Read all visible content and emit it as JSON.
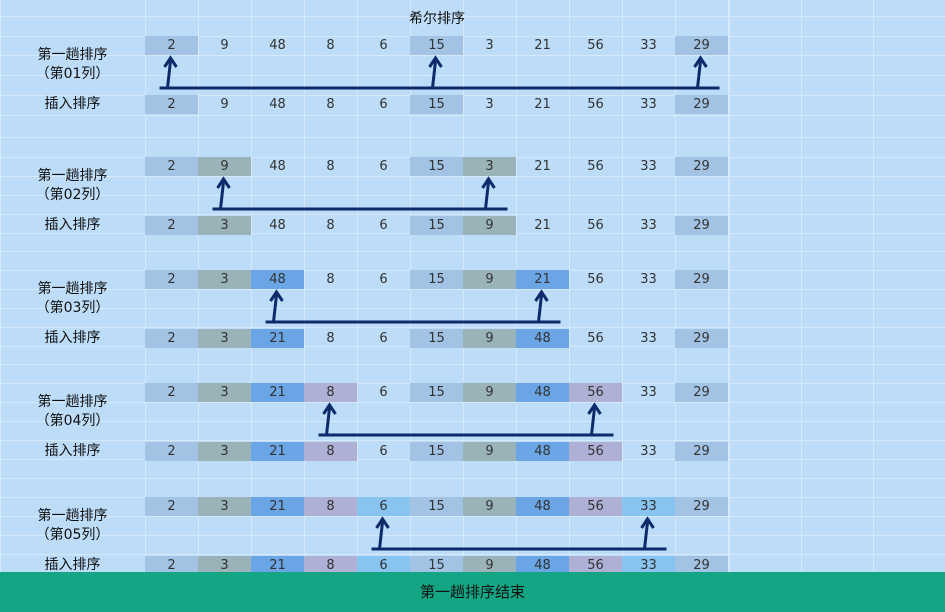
{
  "title": "希尔排序",
  "footer_text": "第一趟排序结束",
  "colors": {
    "background": "#bcdcf8",
    "footer": "#14a585",
    "arrow": "#0d2a6b",
    "group1": "#a2c3e3",
    "group2": "#9ab3b8",
    "group3": "#6aa5e6",
    "group4": "#afb0d5",
    "group5": "#88c4f0"
  },
  "blocks": [
    {
      "label_line1": "第一趟排序",
      "label_line2": "（第01列）",
      "before": [
        "2",
        "9",
        "48",
        "8",
        "6",
        "15",
        "3",
        "21",
        "56",
        "33",
        "29"
      ],
      "before_colors": [
        "#a2c3e3",
        "",
        "",
        "",
        "",
        "#a2c3e3",
        "",
        "",
        "",
        "",
        "#a2c3e3"
      ],
      "insert_label": "插入排序",
      "after": [
        "2",
        "9",
        "48",
        "8",
        "6",
        "15",
        "3",
        "21",
        "56",
        "33",
        "29"
      ],
      "after_colors": [
        "#a2c3e3",
        "",
        "",
        "",
        "",
        "#a2c3e3",
        "",
        "",
        "",
        "",
        "#a2c3e3"
      ],
      "arrow_columns": [
        0,
        5,
        10
      ]
    },
    {
      "label_line1": "第一趟排序",
      "label_line2": "（第02列）",
      "before": [
        "2",
        "9",
        "48",
        "8",
        "6",
        "15",
        "3",
        "21",
        "56",
        "33",
        "29"
      ],
      "before_colors": [
        "#a2c3e3",
        "#9ab3b8",
        "",
        "",
        "",
        "#a2c3e3",
        "#9ab3b8",
        "",
        "",
        "",
        "#a2c3e3"
      ],
      "insert_label": "插入排序",
      "after": [
        "2",
        "3",
        "48",
        "8",
        "6",
        "15",
        "9",
        "21",
        "56",
        "33",
        "29"
      ],
      "after_colors": [
        "#a2c3e3",
        "#9ab3b8",
        "",
        "",
        "",
        "#a2c3e3",
        "#9ab3b8",
        "",
        "",
        "",
        "#a2c3e3"
      ],
      "arrow_columns": [
        1,
        6
      ]
    },
    {
      "label_line1": "第一趟排序",
      "label_line2": "（第03列）",
      "before": [
        "2",
        "3",
        "48",
        "8",
        "6",
        "15",
        "9",
        "21",
        "56",
        "33",
        "29"
      ],
      "before_colors": [
        "#a2c3e3",
        "#9ab3b8",
        "#6aa5e6",
        "",
        "",
        "#a2c3e3",
        "#9ab3b8",
        "#6aa5e6",
        "",
        "",
        "#a2c3e3"
      ],
      "insert_label": "插入排序",
      "after": [
        "2",
        "3",
        "21",
        "8",
        "6",
        "15",
        "9",
        "48",
        "56",
        "33",
        "29"
      ],
      "after_colors": [
        "#a2c3e3",
        "#9ab3b8",
        "#6aa5e6",
        "",
        "",
        "#a2c3e3",
        "#9ab3b8",
        "#6aa5e6",
        "",
        "",
        "#a2c3e3"
      ],
      "arrow_columns": [
        2,
        7
      ]
    },
    {
      "label_line1": "第一趟排序",
      "label_line2": "（第04列）",
      "before": [
        "2",
        "3",
        "21",
        "8",
        "6",
        "15",
        "9",
        "48",
        "56",
        "33",
        "29"
      ],
      "before_colors": [
        "#a2c3e3",
        "#9ab3b8",
        "#6aa5e6",
        "#afb0d5",
        "",
        "#a2c3e3",
        "#9ab3b8",
        "#6aa5e6",
        "#afb0d5",
        "",
        "#a2c3e3"
      ],
      "insert_label": "插入排序",
      "after": [
        "2",
        "3",
        "21",
        "8",
        "6",
        "15",
        "9",
        "48",
        "56",
        "33",
        "29"
      ],
      "after_colors": [
        "#a2c3e3",
        "#9ab3b8",
        "#6aa5e6",
        "#afb0d5",
        "",
        "#a2c3e3",
        "#9ab3b8",
        "#6aa5e6",
        "#afb0d5",
        "",
        "#a2c3e3"
      ],
      "arrow_columns": [
        3,
        8
      ]
    },
    {
      "label_line1": "第一趟排序",
      "label_line2": "（第05列）",
      "before": [
        "2",
        "3",
        "21",
        "8",
        "6",
        "15",
        "9",
        "48",
        "56",
        "33",
        "29"
      ],
      "before_colors": [
        "#a2c3e3",
        "#9ab3b8",
        "#6aa5e6",
        "#afb0d5",
        "#88c4f0",
        "#a2c3e3",
        "#9ab3b8",
        "#6aa5e6",
        "#afb0d5",
        "#88c4f0",
        "#a2c3e3"
      ],
      "insert_label": "插入排序",
      "after": [
        "2",
        "3",
        "21",
        "8",
        "6",
        "15",
        "9",
        "48",
        "56",
        "33",
        "29"
      ],
      "after_colors": [
        "#a2c3e3",
        "#9ab3b8",
        "#6aa5e6",
        "#afb0d5",
        "#88c4f0",
        "#a2c3e3",
        "#9ab3b8",
        "#6aa5e6",
        "#afb0d5",
        "#88c4f0",
        "#a2c3e3"
      ],
      "arrow_columns": [
        4,
        9
      ]
    }
  ]
}
